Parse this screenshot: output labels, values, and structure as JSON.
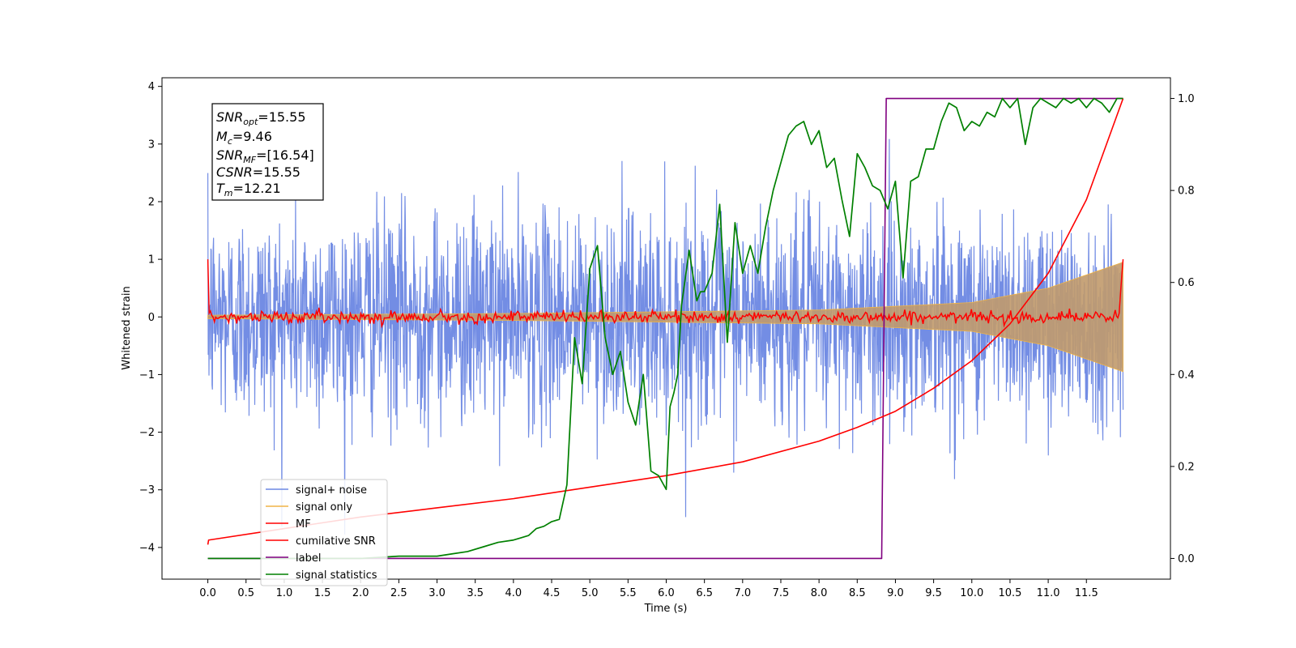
{
  "chart_data": {
    "type": "line",
    "xlabel": "Time (s)",
    "ylabel": "Whitened strain",
    "xlim": [
      -0.6,
      12.6
    ],
    "ylim": [
      -4.55,
      4.15
    ],
    "y2lim": [
      -0.045,
      1.045
    ],
    "x_ticks": [
      "0.0",
      "0.5",
      "1.0",
      "1.5",
      "2.0",
      "2.5",
      "3.0",
      "3.5",
      "4.0",
      "4.5",
      "5.0",
      "5.5",
      "6.0",
      "6.5",
      "7.0",
      "7.5",
      "8.0",
      "8.5",
      "9.0",
      "9.5",
      "10.0",
      "10.5",
      "11.0",
      "11.5"
    ],
    "y_ticks": [
      "−4",
      "−3",
      "−2",
      "−1",
      "0",
      "1",
      "2",
      "3",
      "4"
    ],
    "y2_ticks": [
      "0.0",
      "0.2",
      "0.4",
      "0.6",
      "0.8",
      "1.0"
    ],
    "info_box": {
      "line1_main": "SNR",
      "line1_sub": "opt",
      "line1_val": "=15.55",
      "line2_main": "M",
      "line2_sub": "c",
      "line2_val": "=9.46",
      "line3_main": "SNR",
      "line3_sub": "MF",
      "line3_val": "=[16.54]",
      "line4_main": "CSNR",
      "line4_val": "=15.55",
      "line5_main": "T",
      "line5_sub": "m",
      "line5_val": "=12.21"
    },
    "legend": {
      "placement": "lower-left",
      "entries": [
        "signal+ noise",
        "signal only",
        "MF",
        "cumilative SNR",
        "label",
        "signal statistics"
      ]
    },
    "colors": {
      "noise": "#6b87e3",
      "signal": "#f0b446",
      "mf": "#ff0000",
      "csnr": "#ff0000",
      "label": "#800080",
      "stat": "#008000",
      "signal_fill": "#c19a6b"
    },
    "series": [
      {
        "name": "label",
        "axis": "right",
        "x": [
          0.0,
          8.82,
          8.88,
          11.98
        ],
        "values": [
          0.0,
          0.0,
          1.0,
          1.0
        ]
      },
      {
        "name": "cumilative SNR",
        "axis": "right",
        "x": [
          0.0,
          0.01,
          1.0,
          2.0,
          3.0,
          4.0,
          5.0,
          6.0,
          7.0,
          8.0,
          8.5,
          9.0,
          9.5,
          10.0,
          10.5,
          11.0,
          11.5,
          11.98
        ],
        "values": [
          0.03,
          0.04,
          0.065,
          0.09,
          0.11,
          0.13,
          0.155,
          0.18,
          0.21,
          0.255,
          0.285,
          0.32,
          0.37,
          0.43,
          0.51,
          0.62,
          0.78,
          1.0
        ]
      },
      {
        "name": "signal statistics",
        "axis": "right",
        "x": [
          0.0,
          0.5,
          1.0,
          1.5,
          2.0,
          2.5,
          3.0,
          3.2,
          3.4,
          3.6,
          3.8,
          4.0,
          4.1,
          4.2,
          4.3,
          4.4,
          4.5,
          4.6,
          4.7,
          4.8,
          4.9,
          5.0,
          5.1,
          5.2,
          5.3,
          5.4,
          5.5,
          5.6,
          5.7,
          5.8,
          5.9,
          6.0,
          6.05,
          6.1,
          6.15,
          6.2,
          6.3,
          6.4,
          6.45,
          6.5,
          6.55,
          6.6,
          6.7,
          6.8,
          6.9,
          7.0,
          7.1,
          7.2,
          7.3,
          7.4,
          7.5,
          7.6,
          7.7,
          7.8,
          7.9,
          8.0,
          8.1,
          8.2,
          8.3,
          8.4,
          8.5,
          8.6,
          8.7,
          8.8,
          8.9,
          9.0,
          9.1,
          9.2,
          9.3,
          9.4,
          9.5,
          9.6,
          9.7,
          9.8,
          9.9,
          10.0,
          10.1,
          10.2,
          10.3,
          10.4,
          10.5,
          10.6,
          10.7,
          10.8,
          10.9,
          11.0,
          11.1,
          11.2,
          11.3,
          11.4,
          11.5,
          11.6,
          11.7,
          11.8,
          11.9,
          11.98
        ],
        "values": [
          0.0,
          0.0,
          0.0,
          0.0,
          0.0,
          0.005,
          0.005,
          0.01,
          0.015,
          0.025,
          0.035,
          0.04,
          0.045,
          0.05,
          0.065,
          0.07,
          0.08,
          0.085,
          0.16,
          0.48,
          0.38,
          0.63,
          0.68,
          0.48,
          0.4,
          0.45,
          0.34,
          0.29,
          0.4,
          0.19,
          0.18,
          0.15,
          0.33,
          0.36,
          0.4,
          0.55,
          0.67,
          0.56,
          0.58,
          0.58,
          0.6,
          0.62,
          0.77,
          0.47,
          0.73,
          0.62,
          0.68,
          0.62,
          0.72,
          0.8,
          0.86,
          0.92,
          0.94,
          0.95,
          0.9,
          0.93,
          0.85,
          0.87,
          0.78,
          0.7,
          0.88,
          0.85,
          0.81,
          0.8,
          0.76,
          0.82,
          0.61,
          0.82,
          0.83,
          0.89,
          0.89,
          0.95,
          0.99,
          0.98,
          0.93,
          0.95,
          0.94,
          0.97,
          0.96,
          1.0,
          0.98,
          1.0,
          0.9,
          0.98,
          1.0,
          0.99,
          0.98,
          1.0,
          0.99,
          1.0,
          0.98,
          1.0,
          0.99,
          0.97,
          1.0,
          1.0
        ]
      },
      {
        "name": "signal+ noise",
        "axis": "left",
        "description_scale": {
          "baseline_std": 0.9
        }
      },
      {
        "name": "signal only",
        "axis": "left",
        "amplitude_envelope": {
          "x": [
            0.0,
            4.0,
            8.0,
            10.0,
            11.0,
            11.98
          ],
          "values": [
            0.03,
            0.06,
            0.12,
            0.25,
            0.5,
            0.95
          ]
        }
      },
      {
        "name": "MF",
        "axis": "left",
        "x": [
          0.0,
          0.01,
          0.05,
          11.93,
          11.98
        ],
        "values": [
          1.0,
          0.15,
          0.05,
          0.05,
          1.0
        ]
      }
    ]
  }
}
